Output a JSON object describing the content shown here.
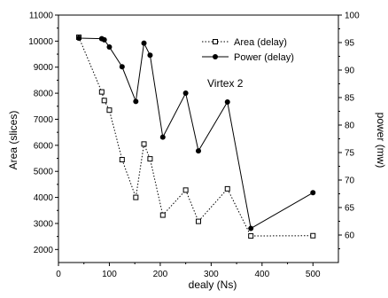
{
  "chart_data": {
    "type": "line",
    "xlabel": "dealy (Ns)",
    "ylabel_left": "Area (slices)",
    "ylabel_right": "power (mw)",
    "xlim": [
      0,
      550
    ],
    "ylim_left": [
      1500,
      11000
    ],
    "ylim_right": [
      55,
      100
    ],
    "x_ticks": [
      0,
      100,
      200,
      300,
      400,
      500
    ],
    "y_left_ticks": [
      2000,
      3000,
      4000,
      5000,
      6000,
      7000,
      8000,
      9000,
      10000,
      11000
    ],
    "y_right_ticks": [
      60,
      65,
      70,
      75,
      80,
      85,
      90,
      95,
      100
    ],
    "grid": false,
    "legend_position": "top-right",
    "annotation": "Virtex 2",
    "series": [
      {
        "name": "Area (delay)",
        "axis": "left",
        "style": "dotted",
        "marker": "open-square",
        "color": "#000000",
        "x": [
          40,
          85,
          90,
          100,
          125,
          152,
          168,
          180,
          205,
          250,
          275,
          332,
          378,
          500
        ],
        "y": [
          10150,
          8050,
          7720,
          7350,
          5450,
          4000,
          6050,
          5480,
          3320,
          4280,
          3080,
          4330,
          2520,
          2530
        ]
      },
      {
        "name": "Power (delay)",
        "axis": "right",
        "style": "solid",
        "marker": "filled-circle",
        "color": "#000000",
        "x": [
          40,
          85,
          90,
          100,
          125,
          152,
          168,
          180,
          205,
          250,
          275,
          332,
          378,
          500
        ],
        "y": [
          95.8,
          95.7,
          95.5,
          94.2,
          90.6,
          84.3,
          94.9,
          92.7,
          77.8,
          85.8,
          75.3,
          84.2,
          61.2,
          67.7
        ]
      }
    ]
  }
}
